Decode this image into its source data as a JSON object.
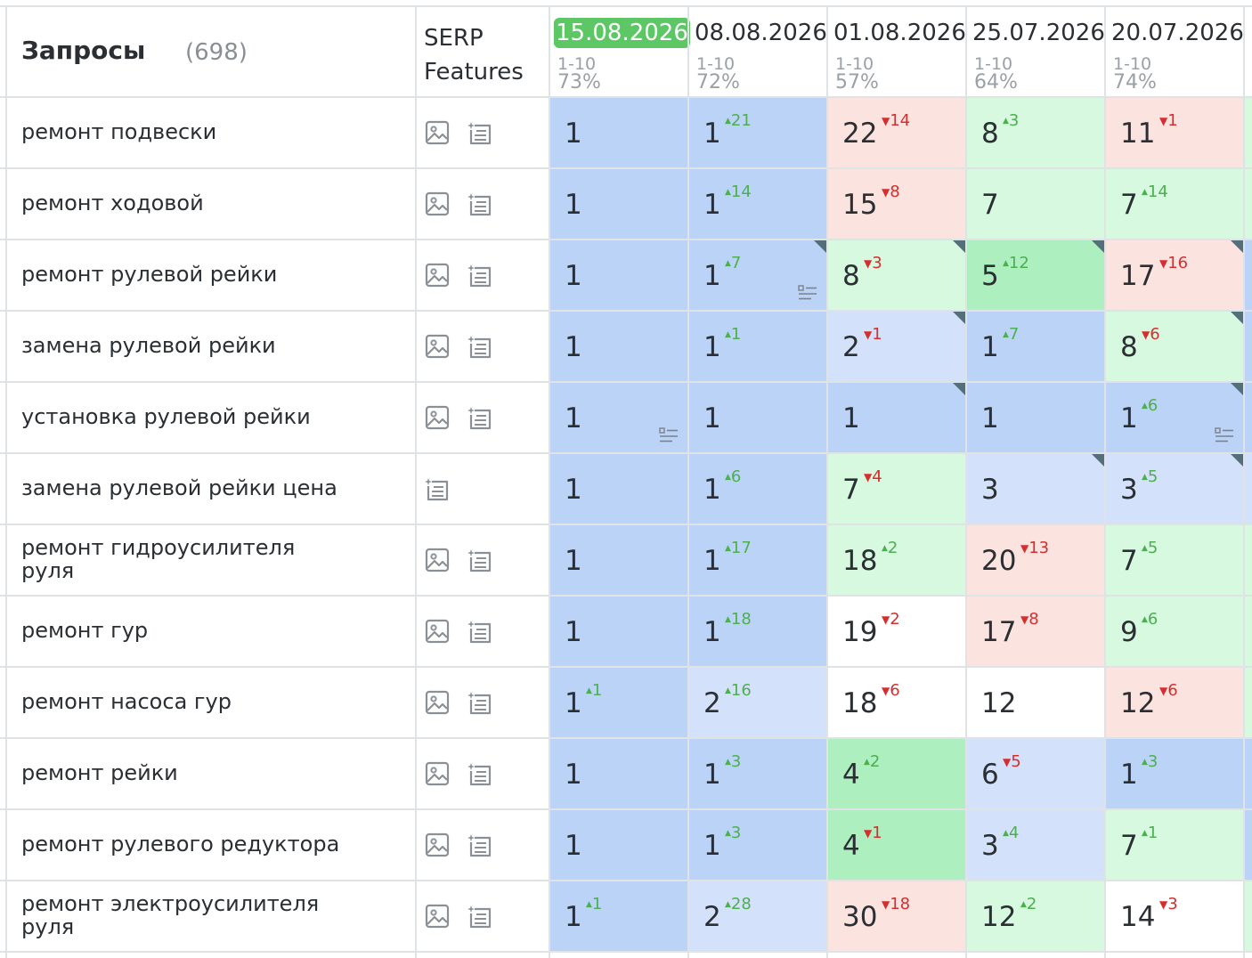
{
  "header": {
    "title": "Запросы",
    "count": "(698)",
    "serp_line1": "SERP",
    "serp_line2": "Features"
  },
  "colors": {
    "blue_dark": "#bcd3f8",
    "blue_light": "#d4e1fb",
    "green_dark": "#aeefbf",
    "green_light": "#d6f9df",
    "red_light": "#fbe4e0",
    "white": "#ffffff",
    "delta_up": "#4caf50",
    "delta_down": "#d32f2f",
    "date_current_bg": "#5cc764"
  },
  "icons": {
    "image": "image-icon",
    "snippet": "featured-snippet-icon",
    "list": "list-snippet-icon"
  },
  "columns": [
    {
      "date": "15.08.2026",
      "range": "1-10",
      "pct": "73%",
      "current": true
    },
    {
      "date": "08.08.2026",
      "range": "1-10",
      "pct": "72%",
      "current": false
    },
    {
      "date": "01.08.2026",
      "range": "1-10",
      "pct": "57%",
      "current": false
    },
    {
      "date": "25.07.2026",
      "range": "1-10",
      "pct": "64%",
      "current": false
    },
    {
      "date": "20.07.2026",
      "range": "1-10",
      "pct": "74%",
      "current": false
    }
  ],
  "rows": [
    {
      "query": "ремонт подвески",
      "features": [
        "image",
        "snippet"
      ],
      "cells": [
        {
          "rank": "1",
          "delta": "",
          "dir": "",
          "bg": "blue_dark"
        },
        {
          "rank": "1",
          "delta": "21",
          "dir": "up",
          "bg": "blue_dark"
        },
        {
          "rank": "22",
          "delta": "14",
          "dir": "down",
          "bg": "red_light"
        },
        {
          "rank": "8",
          "delta": "3",
          "dir": "up",
          "bg": "green_light"
        },
        {
          "rank": "11",
          "delta": "1",
          "dir": "down",
          "bg": "red_light"
        }
      ]
    },
    {
      "query": "ремонт ходовой",
      "features": [
        "image",
        "snippet"
      ],
      "cells": [
        {
          "rank": "1",
          "delta": "",
          "dir": "",
          "bg": "blue_dark"
        },
        {
          "rank": "1",
          "delta": "14",
          "dir": "up",
          "bg": "blue_dark"
        },
        {
          "rank": "15",
          "delta": "8",
          "dir": "down",
          "bg": "red_light"
        },
        {
          "rank": "7",
          "delta": "",
          "dir": "",
          "bg": "green_light"
        },
        {
          "rank": "7",
          "delta": "14",
          "dir": "up",
          "bg": "green_light"
        }
      ]
    },
    {
      "query": "ремонт рулевой рейки",
      "features": [
        "image",
        "snippet"
      ],
      "cells": [
        {
          "rank": "1",
          "delta": "",
          "dir": "",
          "bg": "blue_dark"
        },
        {
          "rank": "1",
          "delta": "7",
          "dir": "up",
          "bg": "blue_dark",
          "corner": true,
          "list": true
        },
        {
          "rank": "8",
          "delta": "3",
          "dir": "down",
          "bg": "green_light",
          "corner": true
        },
        {
          "rank": "5",
          "delta": "12",
          "dir": "up",
          "bg": "green_dark",
          "corner": true
        },
        {
          "rank": "17",
          "delta": "16",
          "dir": "down",
          "bg": "red_light",
          "corner": true
        }
      ]
    },
    {
      "query": "замена рулевой рейки",
      "features": [
        "image",
        "snippet"
      ],
      "cells": [
        {
          "rank": "1",
          "delta": "",
          "dir": "",
          "bg": "blue_dark"
        },
        {
          "rank": "1",
          "delta": "1",
          "dir": "up",
          "bg": "blue_dark"
        },
        {
          "rank": "2",
          "delta": "1",
          "dir": "down",
          "bg": "blue_light",
          "corner": true
        },
        {
          "rank": "1",
          "delta": "7",
          "dir": "up",
          "bg": "blue_dark"
        },
        {
          "rank": "8",
          "delta": "6",
          "dir": "down",
          "bg": "green_light",
          "corner": true
        }
      ]
    },
    {
      "query": "установка рулевой рейки",
      "features": [
        "image",
        "snippet"
      ],
      "cells": [
        {
          "rank": "1",
          "delta": "",
          "dir": "",
          "bg": "blue_dark",
          "list": true
        },
        {
          "rank": "1",
          "delta": "",
          "dir": "",
          "bg": "blue_dark"
        },
        {
          "rank": "1",
          "delta": "",
          "dir": "",
          "bg": "blue_dark",
          "corner": true
        },
        {
          "rank": "1",
          "delta": "",
          "dir": "",
          "bg": "blue_dark"
        },
        {
          "rank": "1",
          "delta": "6",
          "dir": "up",
          "bg": "blue_dark",
          "corner": true,
          "list": true
        }
      ]
    },
    {
      "query": "замена рулевой рейки цена",
      "features": [
        "snippet"
      ],
      "cells": [
        {
          "rank": "1",
          "delta": "",
          "dir": "",
          "bg": "blue_dark"
        },
        {
          "rank": "1",
          "delta": "6",
          "dir": "up",
          "bg": "blue_dark"
        },
        {
          "rank": "7",
          "delta": "4",
          "dir": "down",
          "bg": "green_light"
        },
        {
          "rank": "3",
          "delta": "",
          "dir": "",
          "bg": "blue_light",
          "corner": true
        },
        {
          "rank": "3",
          "delta": "5",
          "dir": "up",
          "bg": "blue_light",
          "corner": true
        }
      ]
    },
    {
      "query": "ремонт гидроусилителя руля",
      "query_lines": [
        "ремонт гидроусилителя",
        "руля"
      ],
      "features": [
        "image",
        "snippet"
      ],
      "cells": [
        {
          "rank": "1",
          "delta": "",
          "dir": "",
          "bg": "blue_dark"
        },
        {
          "rank": "1",
          "delta": "17",
          "dir": "up",
          "bg": "blue_dark"
        },
        {
          "rank": "18",
          "delta": "2",
          "dir": "up",
          "bg": "green_light"
        },
        {
          "rank": "20",
          "delta": "13",
          "dir": "down",
          "bg": "red_light"
        },
        {
          "rank": "7",
          "delta": "5",
          "dir": "up",
          "bg": "green_light"
        }
      ]
    },
    {
      "query": "ремонт гур",
      "features": [
        "image",
        "snippet"
      ],
      "cells": [
        {
          "rank": "1",
          "delta": "",
          "dir": "",
          "bg": "blue_dark"
        },
        {
          "rank": "1",
          "delta": "18",
          "dir": "up",
          "bg": "blue_dark"
        },
        {
          "rank": "19",
          "delta": "2",
          "dir": "down",
          "bg": "white"
        },
        {
          "rank": "17",
          "delta": "8",
          "dir": "down",
          "bg": "red_light"
        },
        {
          "rank": "9",
          "delta": "6",
          "dir": "up",
          "bg": "green_light"
        }
      ]
    },
    {
      "query": "ремонт насоса гур",
      "features": [
        "image",
        "snippet"
      ],
      "cells": [
        {
          "rank": "1",
          "delta": "1",
          "dir": "up",
          "bg": "blue_dark"
        },
        {
          "rank": "2",
          "delta": "16",
          "dir": "up",
          "bg": "blue_light"
        },
        {
          "rank": "18",
          "delta": "6",
          "dir": "down",
          "bg": "white"
        },
        {
          "rank": "12",
          "delta": "",
          "dir": "",
          "bg": "white"
        },
        {
          "rank": "12",
          "delta": "6",
          "dir": "down",
          "bg": "red_light"
        }
      ]
    },
    {
      "query": "ремонт рейки",
      "features": [
        "image",
        "snippet"
      ],
      "cells": [
        {
          "rank": "1",
          "delta": "",
          "dir": "",
          "bg": "blue_dark"
        },
        {
          "rank": "1",
          "delta": "3",
          "dir": "up",
          "bg": "blue_dark"
        },
        {
          "rank": "4",
          "delta": "2",
          "dir": "up",
          "bg": "green_dark"
        },
        {
          "rank": "6",
          "delta": "5",
          "dir": "down",
          "bg": "blue_light"
        },
        {
          "rank": "1",
          "delta": "3",
          "dir": "up",
          "bg": "blue_dark"
        }
      ]
    },
    {
      "query": "ремонт рулевого редуктора",
      "features": [
        "image",
        "snippet"
      ],
      "cells": [
        {
          "rank": "1",
          "delta": "",
          "dir": "",
          "bg": "blue_dark"
        },
        {
          "rank": "1",
          "delta": "3",
          "dir": "up",
          "bg": "blue_dark"
        },
        {
          "rank": "4",
          "delta": "1",
          "dir": "down",
          "bg": "green_dark"
        },
        {
          "rank": "3",
          "delta": "4",
          "dir": "up",
          "bg": "blue_light"
        },
        {
          "rank": "7",
          "delta": "1",
          "dir": "up",
          "bg": "green_light"
        }
      ]
    },
    {
      "query": "ремонт электроусилителя руля",
      "query_lines": [
        "ремонт электроусилителя",
        "руля"
      ],
      "features": [
        "image",
        "snippet"
      ],
      "cells": [
        {
          "rank": "1",
          "delta": "1",
          "dir": "up",
          "bg": "blue_dark"
        },
        {
          "rank": "2",
          "delta": "28",
          "dir": "up",
          "bg": "blue_light"
        },
        {
          "rank": "30",
          "delta": "18",
          "dir": "down",
          "bg": "red_light"
        },
        {
          "rank": "12",
          "delta": "2",
          "dir": "up",
          "bg": "green_light"
        },
        {
          "rank": "14",
          "delta": "3",
          "dir": "down",
          "bg": "white"
        }
      ]
    }
  ]
}
